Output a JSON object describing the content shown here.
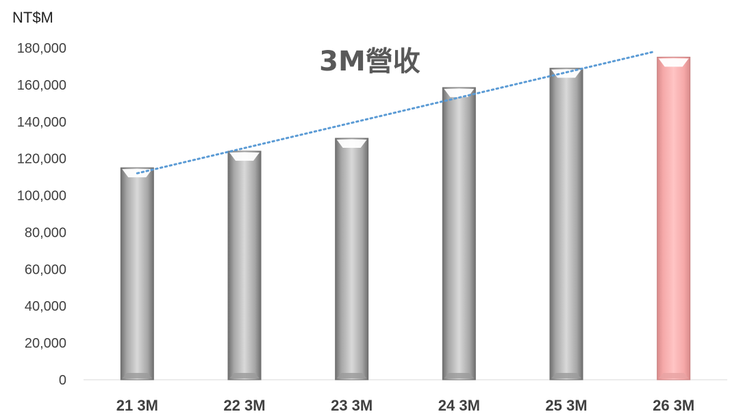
{
  "chart_data": {
    "type": "bar",
    "title": "3M營收",
    "unit_label": "NT$M",
    "categories": [
      "21 3M",
      "22 3M",
      "23 3M",
      "24 3M",
      "25 3M",
      "26 3M"
    ],
    "values": [
      115000,
      124000,
      131000,
      158500,
      169000,
      175000
    ],
    "ylim": [
      0,
      180000
    ],
    "yticks": [
      "0",
      "20,000",
      "40,000",
      "60,000",
      "80,000",
      "100,000",
      "120,000",
      "140,000",
      "160,000",
      "180,000"
    ],
    "ytick_values": [
      0,
      20000,
      40000,
      60000,
      80000,
      100000,
      120000,
      140000,
      160000,
      180000
    ],
    "trendline": {
      "style": "dotted",
      "start": 112000,
      "end": 178000,
      "color": "#5b9bd5"
    },
    "colors": {
      "bar": "#b3b3b3",
      "highlight": "#ffb3b3"
    },
    "highlight_index": 5,
    "grid": false
  }
}
